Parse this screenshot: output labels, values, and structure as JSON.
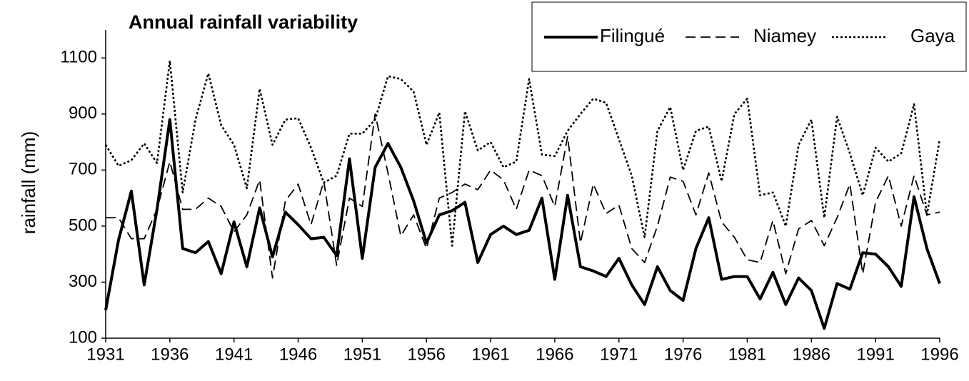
{
  "chart_data": {
    "type": "line",
    "title": "Annual rainfall variability",
    "y_label": "rainfall (mm)",
    "x": [
      1931,
      1932,
      1933,
      1934,
      1935,
      1936,
      1937,
      1938,
      1939,
      1940,
      1941,
      1942,
      1943,
      1944,
      1945,
      1946,
      1947,
      1948,
      1949,
      1950,
      1951,
      1952,
      1953,
      1954,
      1955,
      1956,
      1957,
      1958,
      1959,
      1960,
      1961,
      1962,
      1963,
      1964,
      1965,
      1966,
      1967,
      1968,
      1969,
      1970,
      1971,
      1972,
      1973,
      1974,
      1975,
      1976,
      1977,
      1978,
      1979,
      1980,
      1981,
      1982,
      1983,
      1984,
      1985,
      1986,
      1987,
      1988,
      1989,
      1990,
      1991,
      1992,
      1993,
      1994,
      1995,
      1996
    ],
    "xlim": [
      1931,
      1996
    ],
    "xticks": [
      1931,
      1936,
      1941,
      1946,
      1951,
      1956,
      1961,
      1966,
      1971,
      1976,
      1981,
      1986,
      1991,
      1996
    ],
    "ylim": [
      100,
      1200
    ],
    "yticks": [
      100,
      300,
      500,
      700,
      900,
      1100
    ],
    "grid": false,
    "legend": "top-right",
    "series": [
      {
        "name": "Filingué",
        "color": "#000000",
        "style": "solid",
        "values": [
          200,
          450,
          625,
          290,
          560,
          880,
          420,
          405,
          445,
          330,
          515,
          355,
          565,
          390,
          550,
          505,
          455,
          460,
          395,
          740,
          385,
          710,
          795,
          710,
          590,
          440,
          540,
          555,
          585,
          370,
          470,
          500,
          470,
          485,
          600,
          310,
          610,
          355,
          340,
          320,
          385,
          290,
          220,
          355,
          270,
          235,
          420,
          530,
          310,
          320,
          320,
          240,
          335,
          220,
          315,
          270,
          135,
          295,
          275,
          405,
          400,
          355,
          285,
          605,
          420,
          295
        ]
      },
      {
        "name": "Niamey",
        "color": "#000000",
        "style": "dashed",
        "values": [
          530,
          530,
          455,
          455,
          560,
          730,
          560,
          560,
          600,
          570,
          480,
          540,
          665,
          315,
          590,
          650,
          505,
          660,
          360,
          600,
          570,
          900,
          690,
          465,
          540,
          420,
          600,
          620,
          650,
          630,
          700,
          665,
          560,
          700,
          680,
          570,
          820,
          440,
          650,
          545,
          575,
          420,
          370,
          500,
          675,
          660,
          540,
          690,
          515,
          460,
          380,
          370,
          520,
          330,
          490,
          520,
          430,
          530,
          650,
          330,
          585,
          680,
          500,
          680,
          540,
          550
        ]
      },
      {
        "name": "Gaya",
        "color": "#000000",
        "style": "dotted",
        "values": [
          790,
          715,
          735,
          795,
          725,
          1090,
          620,
          880,
          1045,
          860,
          790,
          635,
          990,
          790,
          880,
          885,
          780,
          655,
          680,
          830,
          830,
          880,
          1035,
          1025,
          980,
          790,
          905,
          430,
          910,
          770,
          800,
          710,
          730,
          1025,
          755,
          750,
          840,
          900,
          955,
          940,
          810,
          680,
          460,
          840,
          925,
          700,
          840,
          855,
          660,
          900,
          955,
          610,
          620,
          500,
          790,
          880,
          530,
          890,
          760,
          610,
          780,
          730,
          760,
          935,
          540,
          810
        ]
      }
    ]
  }
}
